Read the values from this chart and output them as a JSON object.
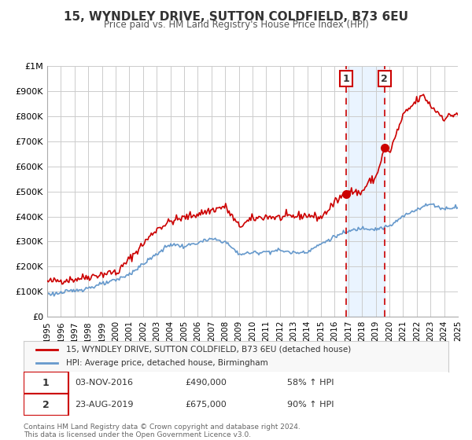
{
  "title": "15, WYNDLEY DRIVE, SUTTON COLDFIELD, B73 6EU",
  "subtitle": "Price paid vs. HM Land Registry's House Price Index (HPI)",
  "xlabel": "",
  "ylabel": "",
  "background_color": "#ffffff",
  "plot_background_color": "#ffffff",
  "grid_color": "#cccccc",
  "red_line_color": "#cc0000",
  "blue_line_color": "#6699cc",
  "annotation_band_color": "#ddeeff",
  "dashed_line_color": "#cc0000",
  "marker1_x": 2016.84,
  "marker1_y": 490000,
  "marker2_x": 2019.64,
  "marker2_y": 675000,
  "legend_label_red": "15, WYNDLEY DRIVE, SUTTON COLDFIELD, B73 6EU (detached house)",
  "legend_label_blue": "HPI: Average price, detached house, Birmingham",
  "table_row1": [
    "1",
    "03-NOV-2016",
    "£490,000",
    "58% ↑ HPI"
  ],
  "table_row2": [
    "2",
    "23-AUG-2019",
    "£675,000",
    "90% ↑ HPI"
  ],
  "footer_line1": "Contains HM Land Registry data © Crown copyright and database right 2024.",
  "footer_line2": "This data is licensed under the Open Government Licence v3.0.",
  "ylim_max": 1000000,
  "xlim_min": 1995,
  "xlim_max": 2025,
  "yticks": [
    0,
    100000,
    200000,
    300000,
    400000,
    500000,
    600000,
    700000,
    800000,
    900000,
    1000000
  ],
  "ytick_labels": [
    "£0",
    "£100K",
    "£200K",
    "£300K",
    "£400K",
    "£500K",
    "£600K",
    "£700K",
    "£800K",
    "£900K",
    "£1M"
  ],
  "xticks": [
    1995,
    1996,
    1997,
    1998,
    1999,
    2000,
    2001,
    2002,
    2003,
    2004,
    2005,
    2006,
    2007,
    2008,
    2009,
    2010,
    2011,
    2012,
    2013,
    2014,
    2015,
    2016,
    2017,
    2018,
    2019,
    2020,
    2021,
    2022,
    2023,
    2024,
    2025
  ]
}
